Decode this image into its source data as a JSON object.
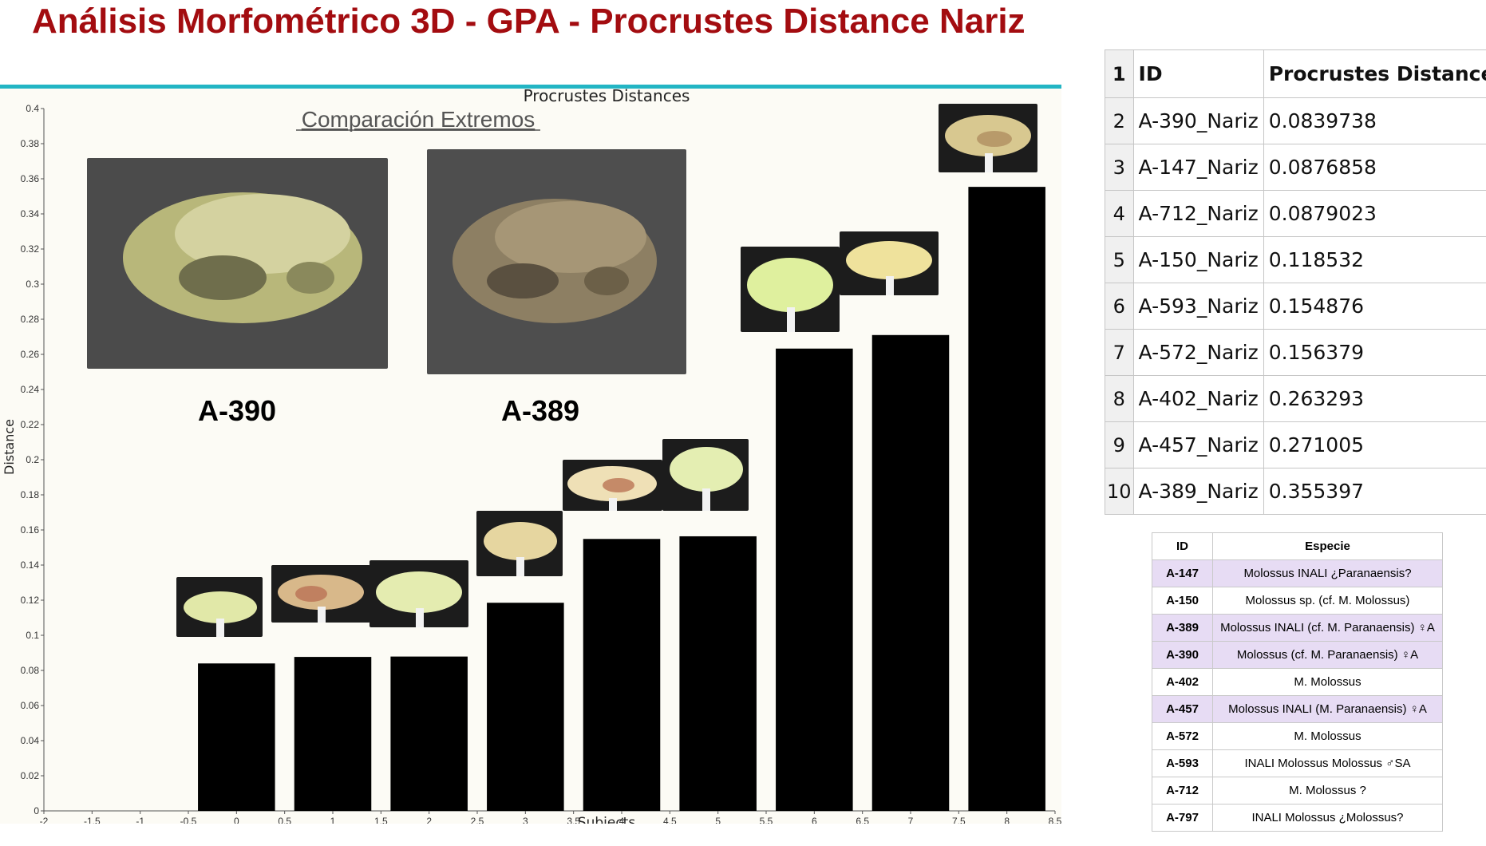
{
  "title": "Análisis Morfométrico 3D - GPA - Procrustes Distance Nariz",
  "chart_data": {
    "type": "bar",
    "title": "Procrustes Distances",
    "xlabel": "Subjects",
    "ylabel": "Distance",
    "x": [
      0,
      1,
      2,
      3,
      4,
      5,
      6,
      7,
      8
    ],
    "values": [
      0.0839738,
      0.0876858,
      0.0879023,
      0.118532,
      0.154876,
      0.156379,
      0.263293,
      0.271005,
      0.355397
    ],
    "xlim": [
      -2,
      8.5
    ],
    "ylim": [
      0,
      0.4
    ],
    "xticks": [
      "-2",
      "-1.5",
      "-1",
      "-0.5",
      "0",
      "0.5",
      "1",
      "1.5",
      "2",
      "2.5",
      "3",
      "3.5",
      "4",
      "4.5",
      "5",
      "5.5",
      "6",
      "6.5",
      "7",
      "7.5",
      "8",
      "8.5"
    ],
    "yticks": [
      "0",
      "0.02",
      "0.04",
      "0.06",
      "0.08",
      "0.1",
      "0.12",
      "0.14",
      "0.16",
      "0.18",
      "0.2",
      "0.22",
      "0.24",
      "0.26",
      "0.28",
      "0.3",
      "0.32",
      "0.34",
      "0.36",
      "0.38",
      "0.4"
    ],
    "bar_color": "#000000",
    "grid": false,
    "annotations": {
      "comparison_title": "Comparación Extremos",
      "left_label": "A-390",
      "right_label": "A-389"
    }
  },
  "distance_table": {
    "row_numbers": [
      "1",
      "2",
      "3",
      "4",
      "5",
      "6",
      "7",
      "8",
      "9",
      "10"
    ],
    "headers": [
      "ID",
      "Procrustes Distance"
    ],
    "rows": [
      [
        "A-390_Nariz",
        "0.0839738"
      ],
      [
        "A-147_Nariz",
        "0.0876858"
      ],
      [
        "A-712_Nariz",
        "0.0879023"
      ],
      [
        "A-150_Nariz",
        "0.118532"
      ],
      [
        "A-593_Nariz",
        "0.154876"
      ],
      [
        "A-572_Nariz",
        "0.156379"
      ],
      [
        "A-402_Nariz",
        "0.263293"
      ],
      [
        "A-457_Nariz",
        "0.271005"
      ],
      [
        "A-389_Nariz",
        "0.355397"
      ]
    ]
  },
  "species_table": {
    "headers": [
      "ID",
      "Especie"
    ],
    "rows": [
      {
        "id": "A-147",
        "especie": "Molossus INALI ¿Paranaensis?",
        "highlight": true
      },
      {
        "id": "A-150",
        "especie": "Molossus sp. (cf. M. Molossus)",
        "highlight": false
      },
      {
        "id": "A-389",
        "especie": "Molossus INALI (cf. M. Paranaensis) ♀A",
        "highlight": true
      },
      {
        "id": "A-390",
        "especie": "Molossus (cf. M. Paranaensis) ♀A",
        "highlight": true
      },
      {
        "id": "A-402",
        "especie": "M. Molossus",
        "highlight": false
      },
      {
        "id": "A-457",
        "especie": "Molossus INALI (M. Paranaensis) ♀A",
        "highlight": true
      },
      {
        "id": "A-572",
        "especie": "M. Molossus",
        "highlight": false
      },
      {
        "id": "A-593",
        "especie": "INALI Molossus Molossus ♂SA",
        "highlight": false
      },
      {
        "id": "A-712",
        "especie": "M. Molossus ?",
        "highlight": false
      },
      {
        "id": "A-797",
        "especie": "INALI Molossus ¿Molossus?",
        "highlight": false
      }
    ],
    "highlight_color": "#e7dcf4"
  },
  "colors": {
    "title": "#a30c10",
    "accent_line": "#23b5c4",
    "plot_background": "#fcfbf5"
  }
}
